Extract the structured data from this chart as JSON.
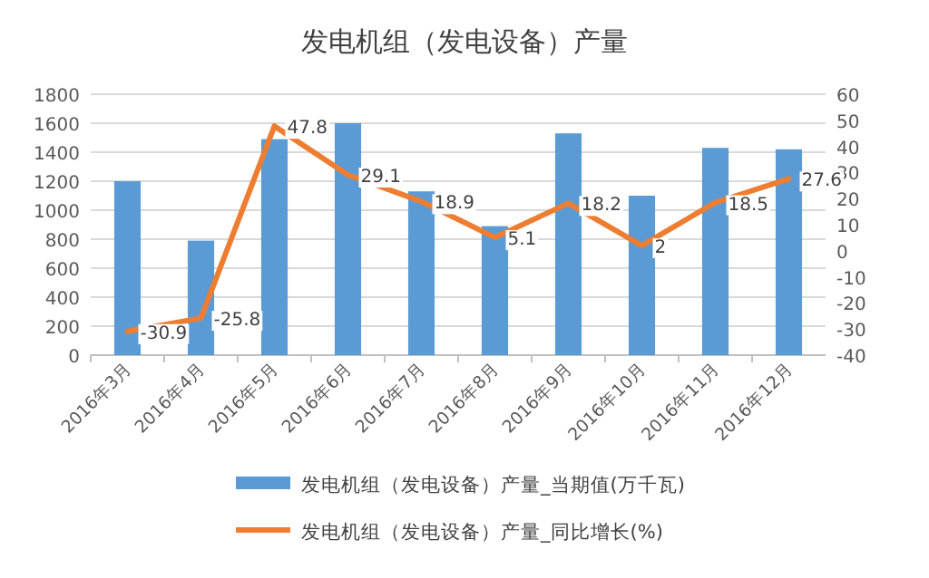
{
  "chart_data": {
    "type": "bar",
    "title": "发电机组（发电设备）产量",
    "categories": [
      "2016年3月",
      "2016年4月",
      "2016年5月",
      "2016年6月",
      "2016年7月",
      "2016年8月",
      "2016年9月",
      "2016年10月",
      "2016年11月",
      "2016年12月"
    ],
    "series": [
      {
        "name": "发电机组（发电设备）产量_当期值(万千瓦)",
        "color": "#5b9bd5",
        "values": [
          1200,
          790,
          1490,
          1600,
          1130,
          890,
          1530,
          1100,
          1430,
          1420
        ]
      },
      {
        "name": "发电机组（发电设备）产量_同比增长(%)",
        "type": "line",
        "axis": "y2",
        "color": "#ed7d31",
        "values": [
          -30.9,
          -25.8,
          47.8,
          29.1,
          18.9,
          5.1,
          18.2,
          2,
          18.5,
          27.6
        ],
        "value_labels": [
          "-30.9",
          "-25.8",
          "47.8",
          "29.1",
          "18.9",
          "5.1",
          "18.2",
          "2",
          "18.5",
          "27.6"
        ]
      }
    ],
    "ylim": [
      0,
      1800
    ],
    "yticks": [
      0,
      200,
      400,
      600,
      800,
      1000,
      1200,
      1400,
      1600,
      1800
    ],
    "y2lim": [
      -40,
      60
    ],
    "y2ticks": [
      -40,
      -30,
      -20,
      -10,
      0,
      10,
      20,
      30,
      40,
      50,
      60
    ],
    "grid": "y",
    "legend": "bottom"
  }
}
